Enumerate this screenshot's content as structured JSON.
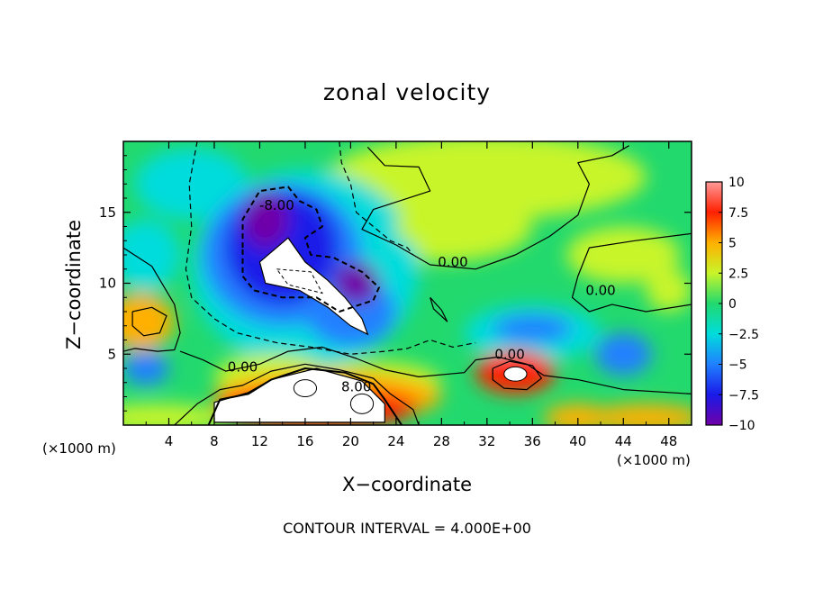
{
  "chart_data": {
    "type": "heatmap",
    "title": "zonal velocity",
    "xlabel": "X−coordinate",
    "ylabel": "Z−coordinate",
    "x_unit_label_left": "(×1000 m)",
    "x_unit_label_right": "(×1000 m)",
    "footer": "CONTOUR INTERVAL = 4.000E+00",
    "xlim": [
      0,
      50
    ],
    "ylim": [
      0,
      20
    ],
    "x_ticks": [
      "4",
      "8",
      "12",
      "16",
      "20",
      "24",
      "28",
      "32",
      "36",
      "40",
      "44",
      "48"
    ],
    "x_tick_values": [
      4,
      8,
      12,
      16,
      20,
      24,
      28,
      32,
      36,
      40,
      44,
      48
    ],
    "y_ticks": [
      "5",
      "10",
      "15"
    ],
    "y_tick_values": [
      5,
      10,
      15
    ],
    "colorbar": {
      "ticks": [
        "10",
        "7.5",
        "5",
        "2.5",
        "0",
        "−2.5",
        "−5",
        "−7.5",
        "−10"
      ],
      "values": [
        10,
        7.5,
        5,
        2.5,
        0,
        -2.5,
        -5,
        -7.5,
        -10
      ],
      "range": [
        -10,
        10
      ]
    },
    "contour_labels": [
      {
        "text": "-8.00",
        "x": 13.5,
        "z": 15.5
      },
      {
        "text": "0.00",
        "x": 29.0,
        "z": 11.5
      },
      {
        "text": "0.00",
        "x": 42.0,
        "z": 9.5
      },
      {
        "text": "0.00",
        "x": 34.0,
        "z": 5.0
      },
      {
        "text": "0.00",
        "x": 10.5,
        "z": 4.1
      },
      {
        "text": "8.00",
        "x": 20.5,
        "z": 2.7
      }
    ],
    "features": [
      {
        "kind": "min",
        "x": 13.5,
        "z": 10.5,
        "value": -12
      },
      {
        "kind": "min",
        "x": 44.0,
        "z": 4.5,
        "value": -6
      },
      {
        "kind": "max",
        "x": 15.5,
        "z": 2.0,
        "value": 12
      },
      {
        "kind": "max",
        "x": 34.5,
        "z": 3.5,
        "value": 10
      },
      {
        "kind": "max",
        "x": 2.5,
        "z": 7.0,
        "value": 7
      }
    ],
    "colors": {
      "-10": "#7000a8",
      "-7.5": "#1a1ae8",
      "-5": "#2080ff",
      "-2.5": "#00dcdc",
      "0": "#22d96e",
      "2.5": "#c8f52a",
      "5": "#ffb000",
      "7.5": "#ff2000",
      "10": "#ff9a9a"
    }
  }
}
